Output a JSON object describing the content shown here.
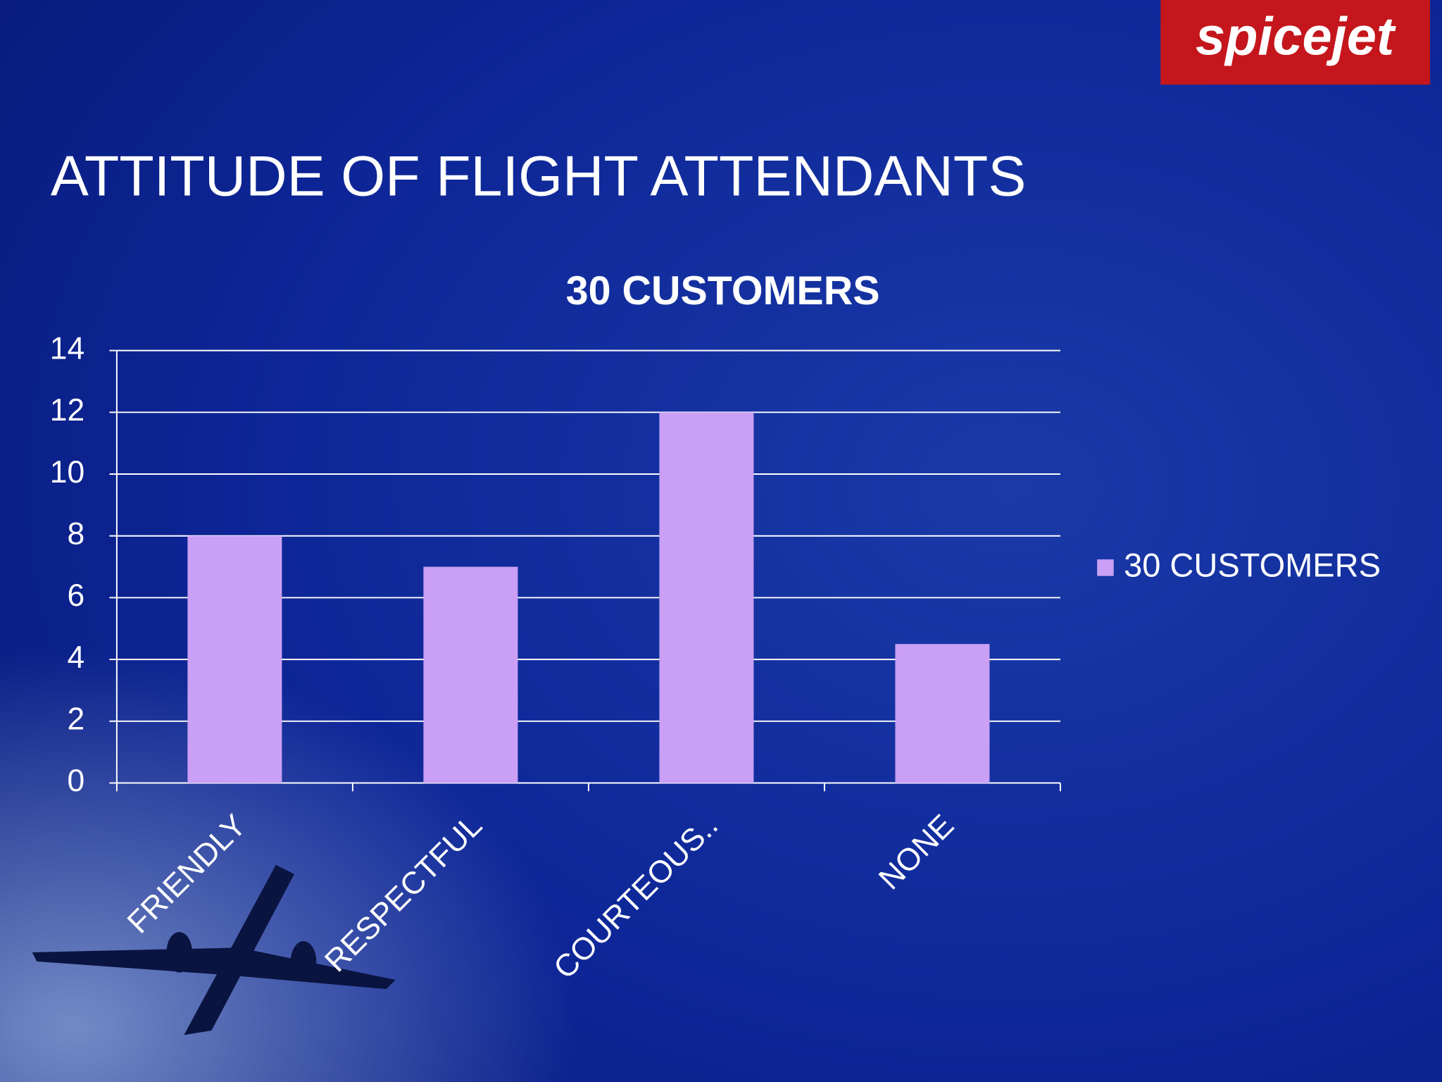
{
  "slide_title": "ATTITUDE OF FLIGHT ATTENDANTS",
  "logo": "spicejet",
  "chart_data": {
    "type": "bar",
    "title": "30 CUSTOMERS",
    "categories": [
      "FRIENDLY",
      "RESPECTFUL",
      "COURTEOUS..",
      "NONE"
    ],
    "series": [
      {
        "name": "30 CUSTOMERS",
        "color": "#c9a0f5",
        "values": [
          8,
          7,
          12,
          4.5
        ]
      }
    ],
    "ylim": [
      0,
      14
    ],
    "yticks": [
      0,
      2,
      4,
      6,
      8,
      10,
      12,
      14
    ],
    "grid": true,
    "legend": "right"
  }
}
